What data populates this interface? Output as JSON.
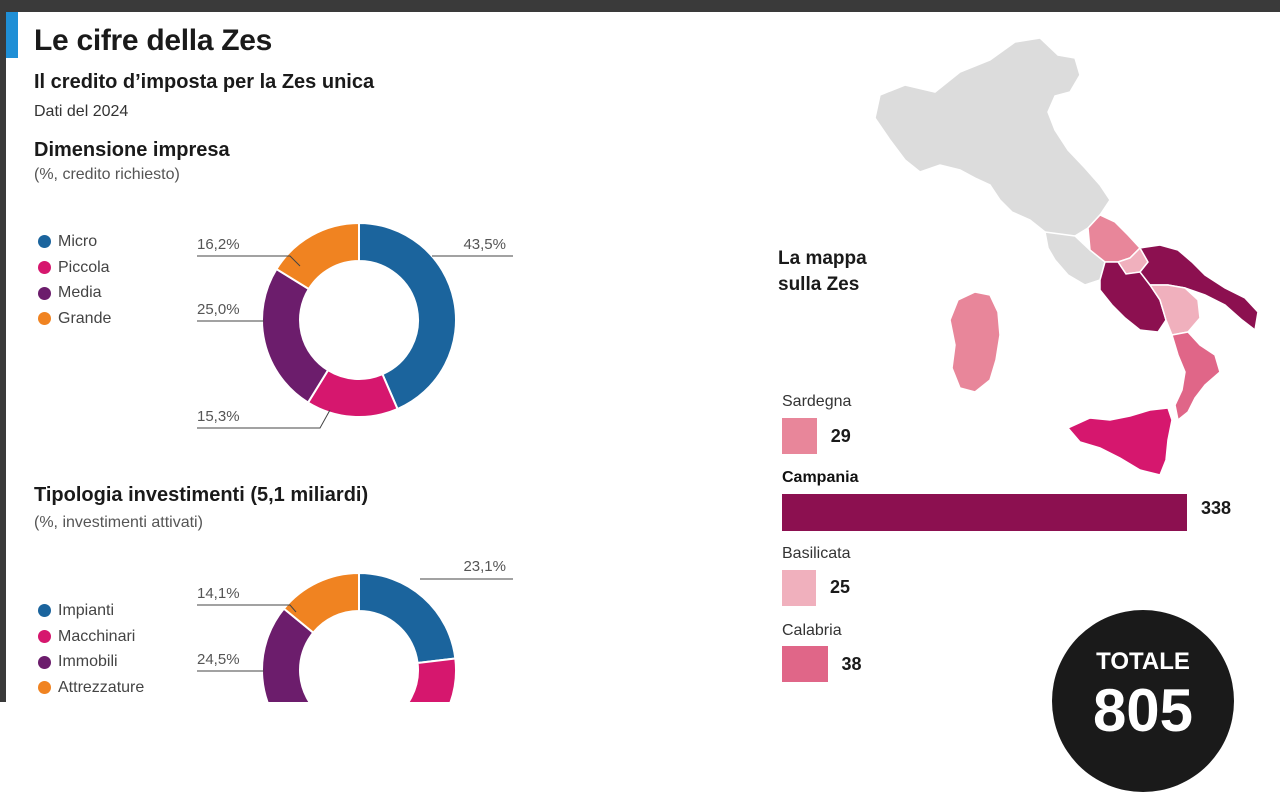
{
  "header": {
    "title": "Le cifre della Zes",
    "subtitle": "Il credito d’imposta per la Zes unica",
    "dati": "Dati del 2024"
  },
  "section1": {
    "title": "Dimensione impresa",
    "subtitle": "(%, credito richiesto)",
    "legend": [
      "Micro",
      "Piccola",
      "Media",
      "Grande"
    ]
  },
  "section2": {
    "title": "Tipologia investimenti (5,1 miliardi)",
    "subtitle": "(%, investimenti attivati)",
    "legend": [
      "Impianti",
      "Macchinari",
      "Immobili",
      "Attrezzature"
    ]
  },
  "map": {
    "title_line1": "La mappa",
    "title_line2": "sulla Zes",
    "regions": [
      {
        "name": "Sardegna",
        "value": "29",
        "color": "#e8869a",
        "bold": false
      },
      {
        "name": "Campania",
        "value": "338",
        "color": "#8c1050",
        "bold": true
      },
      {
        "name": "Basilicata",
        "value": "25",
        "color": "#f0b0bd",
        "bold": false
      },
      {
        "name": "Calabria",
        "value": "38",
        "color": "#e06688",
        "bold": false
      }
    ]
  },
  "totale": {
    "label": "TOTALE",
    "value": "805"
  },
  "colors": {
    "blue": "#1b649d",
    "pink": "#d6176e",
    "purple": "#6c1d6c",
    "orange": "#f08321",
    "accent": "#1f8fd6"
  },
  "chart_data": [
    {
      "type": "pie",
      "title": "Dimensione impresa",
      "subtitle": "(%, credito richiesto)",
      "categories": [
        "Micro",
        "Piccola",
        "Media",
        "Grande"
      ],
      "values": [
        43.5,
        15.3,
        25.0,
        16.2
      ],
      "labels": [
        "43,5%",
        "15,3%",
        "25,0%",
        "16,2%"
      ],
      "colors": [
        "#1b649d",
        "#d6176e",
        "#6c1d6c",
        "#f08321"
      ]
    },
    {
      "type": "pie",
      "title": "Tipologia investimenti (5,1 miliardi)",
      "subtitle": "(%, investimenti attivati)",
      "categories": [
        "Impianti",
        "Macchinari",
        "Immobili",
        "Attrezzature"
      ],
      "values": [
        23.1,
        null,
        24.5,
        14.1
      ],
      "labels": [
        "23,1%",
        "",
        "24,5%",
        "14,1%"
      ],
      "colors": [
        "#1b649d",
        "#d6176e",
        "#6c1d6c",
        "#f08321"
      ]
    },
    {
      "type": "bar",
      "title": "La mappa sulla Zes",
      "categories": [
        "Sardegna",
        "Campania",
        "Basilicata",
        "Calabria"
      ],
      "values": [
        29,
        338,
        25,
        38
      ]
    }
  ]
}
